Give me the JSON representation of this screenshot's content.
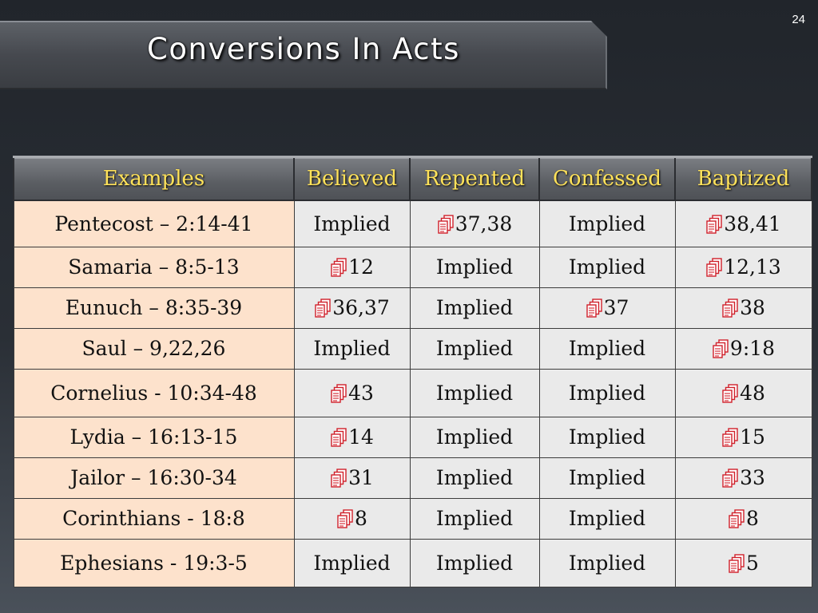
{
  "slide": {
    "number": "24",
    "title": "Conversions In Acts"
  },
  "table": {
    "headers": [
      "Examples",
      "Believed",
      "Repented",
      "Confessed",
      "Baptized"
    ],
    "rows": [
      {
        "example": "Pentecost – 2:14-41",
        "cells": [
          {
            "ref": false,
            "text": "Implied"
          },
          {
            "ref": true,
            "text": "37,38"
          },
          {
            "ref": false,
            "text": "Implied"
          },
          {
            "ref": true,
            "text": "38,41"
          }
        ]
      },
      {
        "example": "Samaria – 8:5-13",
        "cells": [
          {
            "ref": true,
            "text": "12"
          },
          {
            "ref": false,
            "text": "Implied"
          },
          {
            "ref": false,
            "text": "Implied"
          },
          {
            "ref": true,
            "text": "12,13"
          }
        ]
      },
      {
        "example": "Eunuch – 8:35-39",
        "cells": [
          {
            "ref": true,
            "text": "36,37"
          },
          {
            "ref": false,
            "text": "Implied"
          },
          {
            "ref": true,
            "text": "37"
          },
          {
            "ref": true,
            "text": "38"
          }
        ]
      },
      {
        "example": "Saul – 9,22,26",
        "cells": [
          {
            "ref": false,
            "text": "Implied"
          },
          {
            "ref": false,
            "text": "Implied"
          },
          {
            "ref": false,
            "text": "Implied"
          },
          {
            "ref": true,
            "text": "9:18"
          }
        ]
      },
      {
        "example": "Cornelius - 10:34-48",
        "cells": [
          {
            "ref": true,
            "text": "43"
          },
          {
            "ref": false,
            "text": "Implied"
          },
          {
            "ref": false,
            "text": "Implied"
          },
          {
            "ref": true,
            "text": "48"
          }
        ]
      },
      {
        "example": "Lydia – 16:13-15",
        "cells": [
          {
            "ref": true,
            "text": "14"
          },
          {
            "ref": false,
            "text": "Implied"
          },
          {
            "ref": false,
            "text": "Implied"
          },
          {
            "ref": true,
            "text": "15"
          }
        ]
      },
      {
        "example": "Jailor – 16:30-34",
        "cells": [
          {
            "ref": true,
            "text": "31"
          },
          {
            "ref": false,
            "text": "Implied"
          },
          {
            "ref": false,
            "text": "Implied"
          },
          {
            "ref": true,
            "text": "33"
          }
        ]
      },
      {
        "example": "Corinthians - 18:8",
        "cells": [
          {
            "ref": true,
            "text": "8"
          },
          {
            "ref": false,
            "text": "Implied"
          },
          {
            "ref": false,
            "text": "Implied"
          },
          {
            "ref": true,
            "text": "8"
          }
        ]
      },
      {
        "example": "Ephesians - 19:3-5",
        "cells": [
          {
            "ref": false,
            "text": "Implied"
          },
          {
            "ref": false,
            "text": "Implied"
          },
          {
            "ref": false,
            "text": "Implied"
          },
          {
            "ref": true,
            "text": "5"
          }
        ]
      }
    ]
  },
  "icons": {
    "reference": "document-stack-icon"
  },
  "colors": {
    "header_text": "#ffe25a",
    "example_cell": "#fde2cc",
    "value_cell": "#eaeaea",
    "icon": "#d0202a"
  }
}
